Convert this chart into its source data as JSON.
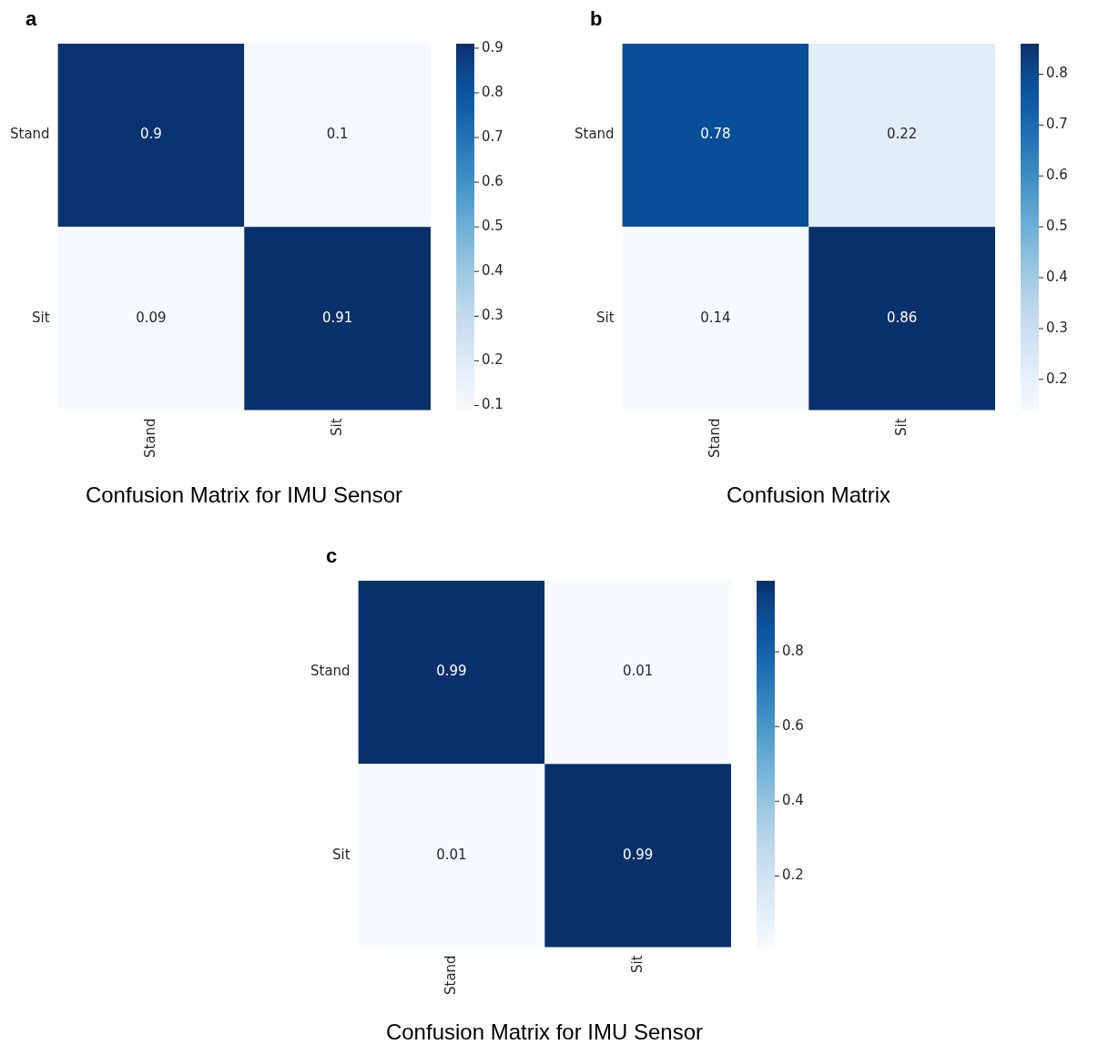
{
  "chart_data": [
    {
      "type": "heatmap",
      "title": "Confusion Matrix for IMU Sensor",
      "annotations": [
        "a"
      ],
      "categories": [
        "Stand",
        "Sit"
      ],
      "y_categories": [
        "Stand",
        "Sit"
      ],
      "cells": [
        [
          0.9,
          0.1
        ],
        [
          0.09,
          0.91
        ]
      ],
      "clim": [
        0.09,
        0.91
      ],
      "cticks": [
        0.1,
        0.2,
        0.3,
        0.4,
        0.5,
        0.6,
        0.7,
        0.8,
        0.9
      ],
      "data_labels": true
    },
    {
      "type": "heatmap",
      "title": "Confusion Matrix",
      "annotations": [
        "b"
      ],
      "categories": [
        "Stand",
        "Sit"
      ],
      "y_categories": [
        "Stand",
        "Sit"
      ],
      "cells": [
        [
          0.78,
          0.22
        ],
        [
          0.14,
          0.86
        ]
      ],
      "clim": [
        0.14,
        0.86
      ],
      "cticks": [
        0.2,
        0.3,
        0.4,
        0.5,
        0.6,
        0.7,
        0.8
      ],
      "data_labels": true
    },
    {
      "type": "heatmap",
      "title": "Confusion Matrix for IMU Sensor",
      "annotations": [
        "c"
      ],
      "categories": [
        "Stand",
        "Sit"
      ],
      "y_categories": [
        "Stand",
        "Sit"
      ],
      "cells": [
        [
          0.99,
          0.01
        ],
        [
          0.01,
          0.99
        ]
      ],
      "clim": [
        0.01,
        0.99
      ],
      "cticks": [
        0.2,
        0.4,
        0.6,
        0.8
      ],
      "data_labels": true
    }
  ]
}
